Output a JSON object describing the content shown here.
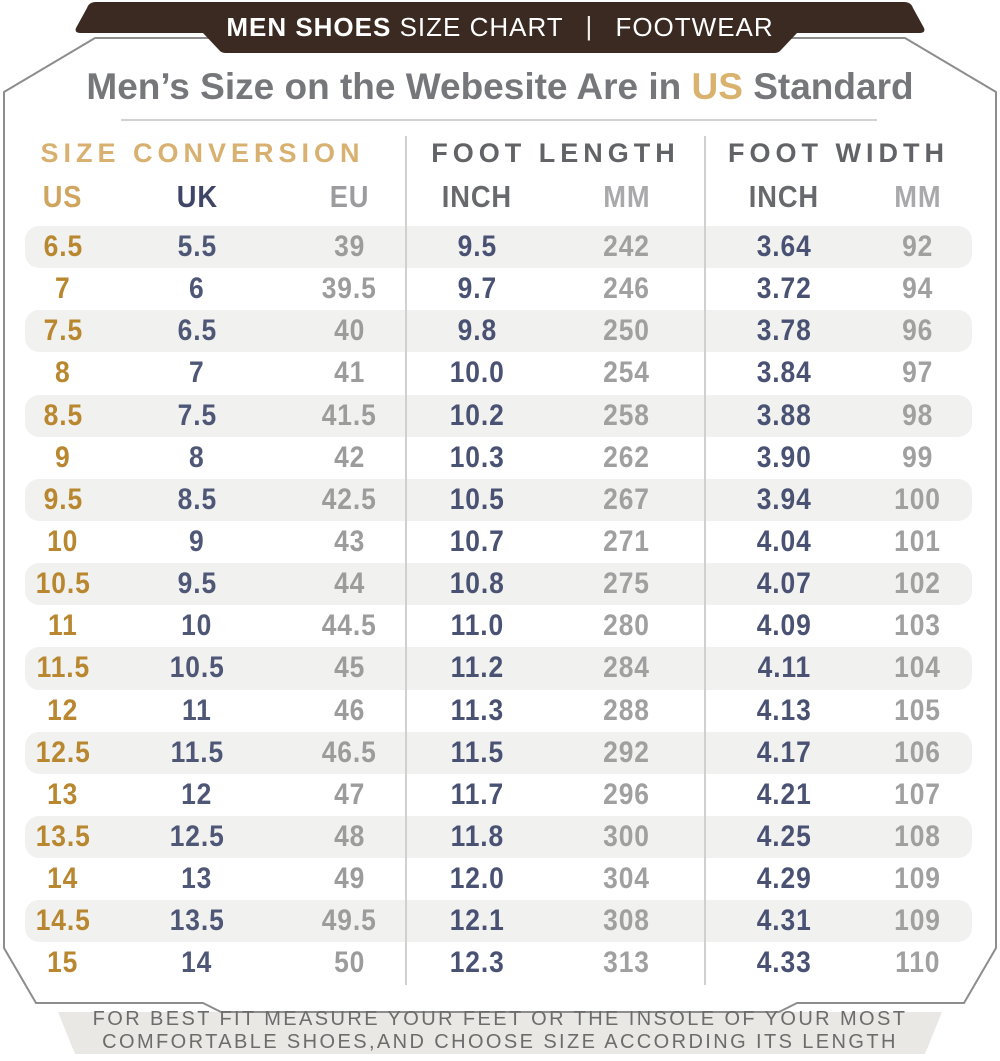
{
  "banner": {
    "title_bold": "MEN SHOES",
    "title_rest": "SIZE CHART",
    "separator": "|",
    "right": "FOOTWEAR"
  },
  "heading": {
    "prefix": "Men’s Size on the Webesite Are in ",
    "highlight": "US",
    "suffix": " Standard"
  },
  "chart_data": {
    "type": "table",
    "title": "Men’s Size on the Webesite Are in US Standard",
    "group_headers": [
      "SIZE CONVERSION",
      "FOOT LENGTH",
      "FOOT WIDTH"
    ],
    "columns": [
      "US",
      "UK",
      "EU",
      "INCH",
      "MM",
      "INCH",
      "MM"
    ],
    "rows": [
      [
        "6.5",
        "5.5",
        "39",
        "9.5",
        "242",
        "3.64",
        "92"
      ],
      [
        "7",
        "6",
        "39.5",
        "9.7",
        "246",
        "3.72",
        "94"
      ],
      [
        "7.5",
        "6.5",
        "40",
        "9.8",
        "250",
        "3.78",
        "96"
      ],
      [
        "8",
        "7",
        "41",
        "10.0",
        "254",
        "3.84",
        "97"
      ],
      [
        "8.5",
        "7.5",
        "41.5",
        "10.2",
        "258",
        "3.88",
        "98"
      ],
      [
        "9",
        "8",
        "42",
        "10.3",
        "262",
        "3.90",
        "99"
      ],
      [
        "9.5",
        "8.5",
        "42.5",
        "10.5",
        "267",
        "3.94",
        "100"
      ],
      [
        "10",
        "9",
        "43",
        "10.7",
        "271",
        "4.04",
        "101"
      ],
      [
        "10.5",
        "9.5",
        "44",
        "10.8",
        "275",
        "4.07",
        "102"
      ],
      [
        "11",
        "10",
        "44.5",
        "11.0",
        "280",
        "4.09",
        "103"
      ],
      [
        "11.5",
        "10.5",
        "45",
        "11.2",
        "284",
        "4.11",
        "104"
      ],
      [
        "12",
        "11",
        "46",
        "11.3",
        "288",
        "4.13",
        "105"
      ],
      [
        "12.5",
        "11.5",
        "46.5",
        "11.5",
        "292",
        "4.17",
        "106"
      ],
      [
        "13",
        "12",
        "47",
        "11.7",
        "296",
        "4.21",
        "107"
      ],
      [
        "13.5",
        "12.5",
        "48",
        "11.8",
        "300",
        "4.25",
        "108"
      ],
      [
        "14",
        "13",
        "49",
        "12.0",
        "304",
        "4.29",
        "109"
      ],
      [
        "14.5",
        "13.5",
        "49.5",
        "12.1",
        "308",
        "4.31",
        "109"
      ],
      [
        "15",
        "14",
        "50",
        "12.3",
        "313",
        "4.33",
        "110"
      ]
    ]
  },
  "footer": {
    "line1": "FOR BEST FIT MEASURE YOUR FEET OR THE INSOLE OF YOUR MOST",
    "line2": "COMFORTABLE SHOES,AND CHOOSE SIZE ACCORDING ITS LENGTH"
  },
  "colors": {
    "banner_brown": "#3a2a22",
    "gold_light": "#d8b170",
    "gold_deep": "#b9872f",
    "navy": "#4a5274",
    "gray_value": "#9c9c9c",
    "stripe": "#f1f1ef",
    "footer_band": "#e9e8e5",
    "card_border": "#8d8d8d"
  }
}
